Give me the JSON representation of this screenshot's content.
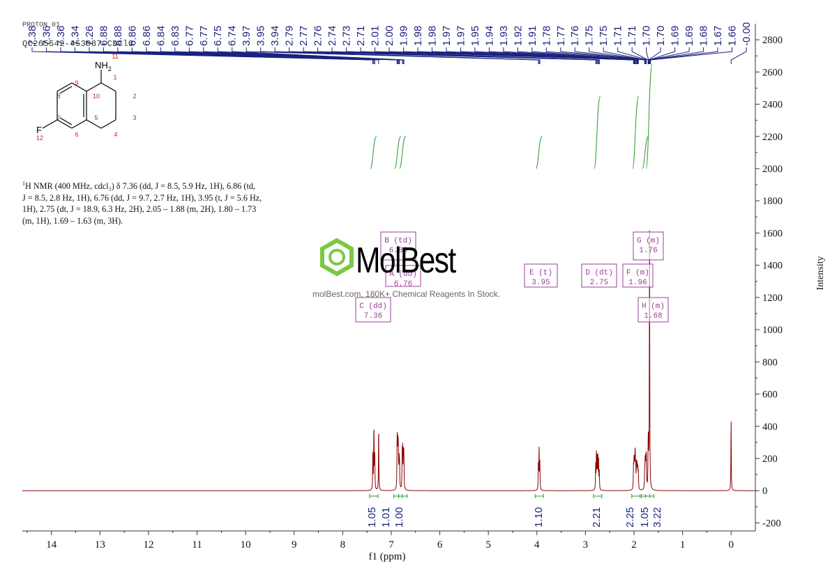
{
  "header": {
    "experiment": "PROTON_01",
    "sample_id": "QC265542-453987-CDCl3"
  },
  "structure": {
    "amine_label": "NH",
    "amine_subscript": "2",
    "halogen_label": "F",
    "atom_numbers": [
      "1",
      "2",
      "3",
      "4",
      "5",
      "6",
      "7",
      "8",
      "9",
      "10",
      "11",
      "12"
    ]
  },
  "summary": {
    "isotope": "1",
    "line1": "H NMR (400 MHz, cdcl₃) δ 7.36 (dd, J = 8.5, 5.9 Hz, 1H), 6.86 (td,",
    "line2": "J = 8.5, 2.8 Hz, 1H), 6.76 (dd, J = 9.7, 2.7 Hz, 1H), 3.95 (t, J = 5.6 Hz,",
    "line3": "1H), 2.75 (dt, J = 18.9, 6.3 Hz, 2H), 2.05 – 1.88 (m, 2H), 1.80 – 1.73",
    "line4": "(m, 1H), 1.69 – 1.63 (m, 3H)."
  },
  "watermark": {
    "brand": "MolBest",
    "tagline": "molBest.com, 180K+ Chemical Reagents In Stock."
  },
  "colors": {
    "spectrum": "#8b0000",
    "peak_labels": "#1a237e",
    "integral": "#2e9a2e",
    "multiplet_box": "#9b3d9b",
    "structure_numbers": "#cc2222",
    "watermark_logo": "#7ac943"
  },
  "chart_data": {
    "type": "line",
    "xlabel": "f1 (ppm)",
    "ylabel": "Intensity",
    "xlim": [
      14.6,
      -0.5
    ],
    "ylim": [
      -250,
      2900
    ],
    "x_ticks": [
      14,
      13,
      12,
      11,
      10,
      9,
      8,
      7,
      6,
      5,
      4,
      3,
      2,
      1,
      0
    ],
    "y_ticks": [
      -200,
      0,
      200,
      400,
      600,
      800,
      1000,
      1200,
      1400,
      1600,
      1800,
      2000,
      2200,
      2400,
      2600,
      2800
    ],
    "peak_labels": [
      "7.38",
      "7.36",
      "7.36",
      "7.34",
      "7.26",
      "6.88",
      "6.88",
      "6.86",
      "6.86",
      "6.84",
      "6.83",
      "6.77",
      "6.77",
      "6.75",
      "6.74",
      "3.97",
      "3.95",
      "3.94",
      "2.79",
      "2.77",
      "2.76",
      "2.74",
      "2.73",
      "2.71",
      "2.01",
      "2.00",
      "1.99",
      "1.98",
      "1.98",
      "1.97",
      "1.97",
      "1.95",
      "1.94",
      "1.93",
      "1.92",
      "1.91",
      "1.78",
      "1.77",
      "1.76",
      "1.75",
      "1.75",
      "1.71",
      "1.71",
      "1.70",
      "1.70",
      "1.69",
      "1.69",
      "1.68",
      "1.67",
      "1.66",
      "-0.00"
    ],
    "peaks": [
      {
        "ppm": 7.38,
        "h": 220
      },
      {
        "ppm": 7.36,
        "h": 240
      },
      {
        "ppm": 7.355,
        "h": 230
      },
      {
        "ppm": 7.34,
        "h": 210
      },
      {
        "ppm": 7.26,
        "h": 400
      },
      {
        "ppm": 6.88,
        "h": 215
      },
      {
        "ppm": 6.875,
        "h": 200
      },
      {
        "ppm": 6.865,
        "h": 270
      },
      {
        "ppm": 6.855,
        "h": 250
      },
      {
        "ppm": 6.84,
        "h": 190
      },
      {
        "ppm": 6.83,
        "h": 160
      },
      {
        "ppm": 6.775,
        "h": 235
      },
      {
        "ppm": 6.765,
        "h": 240
      },
      {
        "ppm": 6.75,
        "h": 225
      },
      {
        "ppm": 6.74,
        "h": 215
      },
      {
        "ppm": 3.97,
        "h": 170
      },
      {
        "ppm": 3.955,
        "h": 260
      },
      {
        "ppm": 3.94,
        "h": 170
      },
      {
        "ppm": 2.79,
        "h": 150
      },
      {
        "ppm": 2.775,
        "h": 220
      },
      {
        "ppm": 2.76,
        "h": 200
      },
      {
        "ppm": 2.745,
        "h": 215
      },
      {
        "ppm": 2.73,
        "h": 180
      },
      {
        "ppm": 2.715,
        "h": 110
      },
      {
        "ppm": 2.01,
        "h": 140
      },
      {
        "ppm": 2.0,
        "h": 155
      },
      {
        "ppm": 1.99,
        "h": 150
      },
      {
        "ppm": 1.98,
        "h": 140
      },
      {
        "ppm": 1.975,
        "h": 145
      },
      {
        "ppm": 1.965,
        "h": 130
      },
      {
        "ppm": 1.95,
        "h": 140
      },
      {
        "ppm": 1.94,
        "h": 130
      },
      {
        "ppm": 1.93,
        "h": 120
      },
      {
        "ppm": 1.92,
        "h": 110
      },
      {
        "ppm": 1.91,
        "h": 100
      },
      {
        "ppm": 1.78,
        "h": 120
      },
      {
        "ppm": 1.77,
        "h": 155
      },
      {
        "ppm": 1.76,
        "h": 160
      },
      {
        "ppm": 1.75,
        "h": 140
      },
      {
        "ppm": 1.745,
        "h": 120
      },
      {
        "ppm": 1.71,
        "h": 160
      },
      {
        "ppm": 1.705,
        "h": 170
      },
      {
        "ppm": 1.7,
        "h": 160
      },
      {
        "ppm": 1.68,
        "h": 1600
      },
      {
        "ppm": 0.0,
        "h": 440
      }
    ],
    "multiplets": [
      {
        "label": "B (td)",
        "value": "6.86"
      },
      {
        "label": "A (dd)",
        "value": "6.76"
      },
      {
        "label": "C (dd)",
        "value": "7.36"
      },
      {
        "label": "E (t)",
        "value": "3.95"
      },
      {
        "label": "D (dt)",
        "value": "2.75"
      },
      {
        "label": "F (m)",
        "value": "1.96"
      },
      {
        "label": "G (m)",
        "value": "1.76"
      },
      {
        "label": "H (m)",
        "value": "1.68"
      }
    ],
    "integrals": [
      {
        "ppm": 7.36,
        "value": "1.05"
      },
      {
        "ppm": 6.86,
        "value": "1.01"
      },
      {
        "ppm": 6.76,
        "value": "1.00"
      },
      {
        "ppm": 3.95,
        "value": "1.10"
      },
      {
        "ppm": 2.75,
        "value": "2.21"
      },
      {
        "ppm": 1.96,
        "value": "2.25"
      },
      {
        "ppm": 1.76,
        "value": "1.05"
      },
      {
        "ppm": 1.68,
        "value": "3.22"
      }
    ],
    "grid": false
  }
}
